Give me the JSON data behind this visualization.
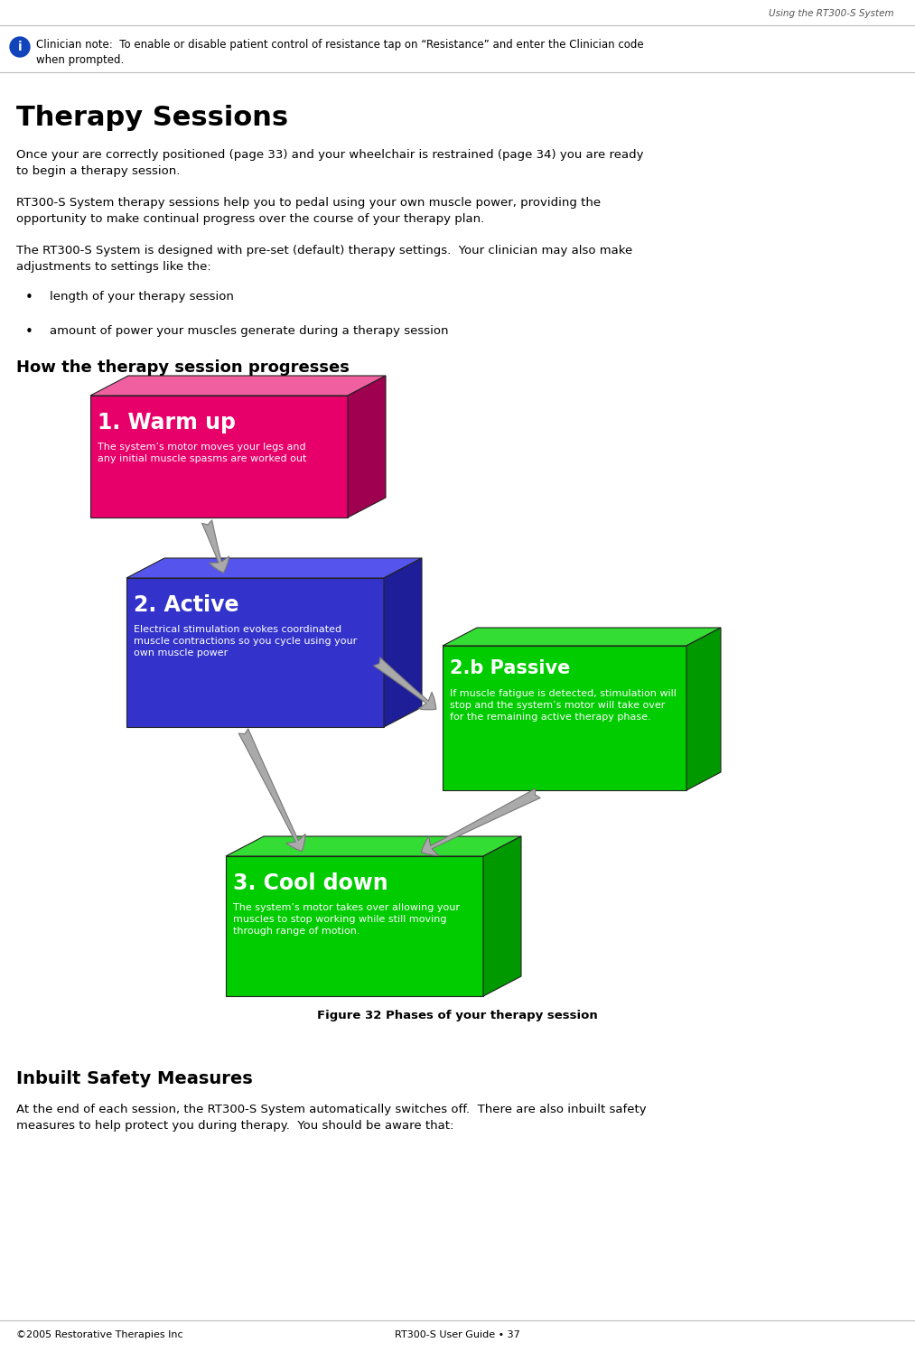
{
  "page_header": "Using the RT300-S System",
  "clinician_note_line1": "Clinician note:  To enable or disable patient control of resistance tap on “Resistance” and enter the Clinician code",
  "clinician_note_line2": "when prompted.",
  "section1_title": "Therapy Sessions",
  "para1_line1": "Once your are correctly positioned (page 33) and your wheelchair is restrained (page 34) you are ready",
  "para1_line2": "to begin a therapy session.",
  "para2_line1": "RT300-S System therapy sessions help you to pedal using your own muscle power, providing the",
  "para2_line2": "opportunity to make continual progress over the course of your therapy plan.",
  "para3_line1": "The RT300-S System is designed with pre-set (default) therapy settings.  Your clinician may also make",
  "para3_line2": "adjustments to settings like the:",
  "bullet1": "length of your therapy session",
  "bullet2": "amount of power your muscles generate during a therapy session",
  "subsection_title": "How the therapy session progresses",
  "figure_label": "Figure 32 Phases of your therapy session",
  "box1_title": "1. Warm up",
  "box1_body": "The system’s motor moves your legs and\nany initial muscle spasms are worked out",
  "box1_color": "#E8006A",
  "box1_top_color": "#F060A0",
  "box1_side_color": "#A00050",
  "box2_title": "2. Active",
  "box2_body": "Electrical stimulation evokes coordinated\nmuscle contractions so you cycle using your\nown muscle power",
  "box2_color": "#3333CC",
  "box2_top_color": "#5555EE",
  "box2_side_color": "#1E1E99",
  "box3_title": "2.b Passive",
  "box3_body": "If muscle fatigue is detected, stimulation will\nstop and the system’s motor will take over\nfor the remaining active therapy phase.",
  "box3_color": "#00CC00",
  "box3_top_color": "#33DD33",
  "box3_side_color": "#009900",
  "box4_title": "3. Cool down",
  "box4_body": "The system’s motor takes over allowing your\nmuscles to stop working while still moving\nthrough range of motion.",
  "box4_color": "#00CC00",
  "box4_top_color": "#33DD33",
  "box4_side_color": "#009900",
  "section2_title": "Inbuilt Safety Measures",
  "section2_para_line1": "At the end of each session, the RT300-S System automatically switches off.  There are also inbuilt safety",
  "section2_para_line2": "measures to help protect you during therapy.  You should be aware that:",
  "footer_left": "©2005 Restorative Therapies Inc",
  "footer_center": "RT300-S User Guide • 37",
  "bg_color": "#FFFFFF",
  "text_color": "#000000"
}
